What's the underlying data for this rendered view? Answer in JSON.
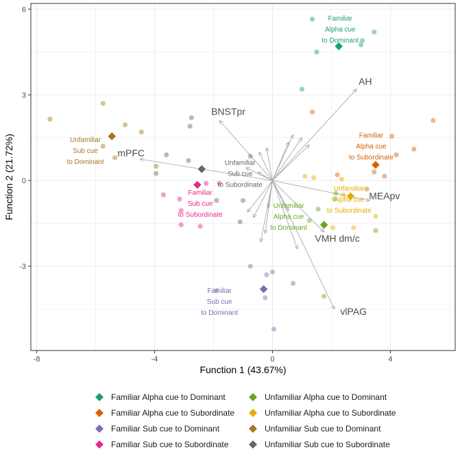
{
  "chart_data": {
    "type": "scatter",
    "xlabel": "Function 1 (43.67%)",
    "ylabel": "Function 2 (21.72%)",
    "xlim": [
      -8.2,
      6.2
    ],
    "ylim": [
      -5.95,
      6.2
    ],
    "xticks": [
      -8,
      -4,
      0,
      4
    ],
    "yticks": [
      -3,
      0,
      3,
      6
    ],
    "grid": true,
    "legend_position": "bottom",
    "series": [
      {
        "name": "Familiar Alpha cue to Dominant",
        "color": "#1b9e77",
        "label_lines": [
          "Familiar",
          "Alpha cue",
          "to Dominant"
        ],
        "label_at": [
          2.3,
          5.6
        ],
        "centroid": [
          2.25,
          4.7
        ],
        "points": [
          [
            1.35,
            5.65
          ],
          [
            3.45,
            5.2
          ],
          [
            3.05,
            4.9
          ],
          [
            3.0,
            4.75
          ],
          [
            1.5,
            4.5
          ],
          [
            1.0,
            3.2
          ]
        ]
      },
      {
        "name": "Familiar Alpha cue to Subordinate",
        "color": "#d95f02",
        "label_lines": [
          "Familiar",
          "Alpha cue",
          "to Subordinate"
        ],
        "label_at": [
          3.35,
          1.5
        ],
        "centroid": [
          3.5,
          0.55
        ],
        "points": [
          [
            5.45,
            2.1
          ],
          [
            4.05,
            1.55
          ],
          [
            4.8,
            1.1
          ],
          [
            4.2,
            0.9
          ],
          [
            1.35,
            2.4
          ],
          [
            3.45,
            0.3
          ],
          [
            3.8,
            0.15
          ],
          [
            2.2,
            0.2
          ],
          [
            3.2,
            -0.3
          ]
        ]
      },
      {
        "name": "Familiar Sub cue to Dominant",
        "color": "#7570b3",
        "label_lines": [
          "Familiar",
          "Sub cue",
          "to Dominant"
        ],
        "label_at": [
          -1.8,
          -3.93
        ],
        "centroid": [
          -0.3,
          -3.8
        ],
        "points": [
          [
            -0.75,
            -3.0
          ],
          [
            0.0,
            -3.2
          ],
          [
            -0.2,
            -3.3
          ],
          [
            0.7,
            -3.6
          ],
          [
            -1.9,
            -3.85
          ],
          [
            -0.25,
            -4.1
          ],
          [
            0.05,
            -5.2
          ]
        ]
      },
      {
        "name": "Familiar Sub cue to Subordinate",
        "color": "#e7298a",
        "label_lines": [
          "Familiar",
          "Sub cue",
          "to Subordinate"
        ],
        "label_at": [
          -2.45,
          -0.5
        ],
        "centroid": [
          -2.55,
          -0.15
        ],
        "points": [
          [
            -3.7,
            -0.5
          ],
          [
            -3.15,
            -0.65
          ],
          [
            -3.1,
            -1.05
          ],
          [
            -2.45,
            -1.6
          ],
          [
            -3.1,
            -1.55
          ],
          [
            -1.8,
            -0.1
          ],
          [
            -2.25,
            -0.1
          ]
        ]
      },
      {
        "name": "Unfamiliar Alpha cue to Dominant",
        "color": "#66a61e",
        "label_lines": [
          "Unfamiliar",
          "Alpha cue",
          "to Dominant"
        ],
        "label_at": [
          0.55,
          -0.95
        ],
        "centroid": [
          1.75,
          -1.55
        ],
        "points": [
          [
            2.15,
            -0.45
          ],
          [
            2.1,
            -0.65
          ],
          [
            1.55,
            -1.0
          ],
          [
            1.25,
            -1.4
          ],
          [
            1.75,
            -1.6
          ],
          [
            3.5,
            -1.75
          ],
          [
            1.75,
            -4.05
          ]
        ]
      },
      {
        "name": "Unfamiliar Alpha cue to Subordinate",
        "color": "#e6ab02",
        "label_lines": [
          "Unfamiliar",
          "Alpha cue",
          "to Subordinate"
        ],
        "label_at": [
          2.6,
          -0.35
        ],
        "centroid": [
          2.65,
          -0.55
        ],
        "points": [
          [
            1.1,
            0.15
          ],
          [
            1.4,
            0.1
          ],
          [
            2.35,
            0.05
          ],
          [
            2.4,
            -0.5
          ],
          [
            3.5,
            -1.25
          ],
          [
            2.75,
            -1.65
          ],
          [
            2.05,
            -1.65
          ]
        ]
      },
      {
        "name": "Unfamiliar Sub cue to Dominant",
        "color": "#a6761d",
        "label_lines": [
          "Unfamiliar",
          "Sub cue",
          "to Dominant"
        ],
        "label_at": [
          -6.35,
          1.35
        ],
        "centroid": [
          -5.45,
          1.55
        ],
        "points": [
          [
            -7.55,
            2.15
          ],
          [
            -5.75,
            2.7
          ],
          [
            -5.0,
            1.95
          ],
          [
            -4.45,
            1.7
          ],
          [
            -5.75,
            1.2
          ],
          [
            -5.35,
            0.8
          ],
          [
            -3.95,
            0.5
          ]
        ]
      },
      {
        "name": "Unfamiliar Sub cue to Subordinate",
        "color": "#666666",
        "label_lines": [
          "Unfamiliar",
          "Sub cue",
          "to Subordinate"
        ],
        "label_at": [
          -1.1,
          0.55
        ],
        "centroid": [
          -2.4,
          0.4
        ],
        "points": [
          [
            -2.75,
            2.2
          ],
          [
            -2.8,
            1.9
          ],
          [
            -3.6,
            0.9
          ],
          [
            -2.85,
            0.7
          ],
          [
            -3.95,
            0.25
          ],
          [
            -0.75,
            0.85
          ],
          [
            -1.0,
            -0.7
          ],
          [
            -1.9,
            -0.7
          ],
          [
            -1.1,
            -1.45
          ]
        ]
      }
    ],
    "vectors": [
      {
        "label": "AH",
        "to": [
          2.85,
          3.2
        ],
        "label_at": [
          3.15,
          3.35
        ]
      },
      {
        "label": "BNSTpr",
        "to": [
          -1.8,
          2.1
        ],
        "label_at": [
          -1.5,
          2.3
        ]
      },
      {
        "label": "mPFC",
        "to": [
          -4.5,
          0.75
        ],
        "label_at": [
          -4.8,
          0.85
        ]
      },
      {
        "label": "MEApv",
        "to": [
          3.3,
          -0.7
        ],
        "label_at": [
          3.8,
          -0.65
        ]
      },
      {
        "label": "VMH dm/c",
        "to": [
          1.75,
          -1.8
        ],
        "label_at": [
          2.2,
          -2.15
        ]
      },
      {
        "label": "vlPAG",
        "to": [
          2.1,
          -4.5
        ],
        "label_at": [
          2.75,
          -4.7
        ]
      }
    ],
    "minor_vectors": [
      [
        -0.4,
        -2.15
      ],
      [
        0.85,
        -2.4
      ],
      [
        -0.25,
        -1.85
      ],
      [
        -0.65,
        -1.3
      ],
      [
        -0.85,
        -1.1
      ],
      [
        0.55,
        -1.05
      ],
      [
        -0.15,
        -0.95
      ],
      [
        1.0,
        1.5
      ],
      [
        0.7,
        1.6
      ],
      [
        0.55,
        1.35
      ],
      [
        -0.9,
        0.45
      ],
      [
        -0.45,
        1.0
      ],
      [
        -0.2,
        1.15
      ],
      [
        1.25,
        1.25
      ],
      [
        -0.5,
        0.3
      ]
    ]
  }
}
